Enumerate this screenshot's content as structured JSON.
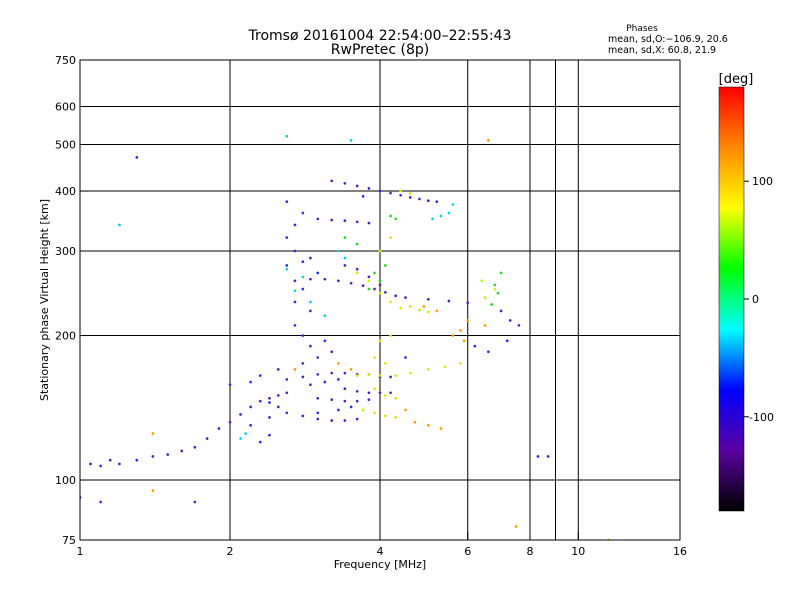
{
  "chart_data": {
    "type": "scatter",
    "title": "Tromsø 20161004 22:54:00–22:55:43",
    "subtitle": "RwPretec (8p)",
    "xlabel": "Frequency [MHz]",
    "ylabel": "Stationary phase Virtual Height [km]",
    "x_scale": "log",
    "y_scale": "log",
    "xlim": [
      1,
      16
    ],
    "ylim": [
      75,
      750
    ],
    "x_ticks": [
      1,
      2,
      4,
      6,
      8,
      10,
      16
    ],
    "x_minor_ticks": [
      9
    ],
    "y_ticks": [
      75,
      100,
      200,
      300,
      400,
      500,
      600,
      750
    ],
    "grid": true,
    "legend": {
      "title": "Phases",
      "line1": "mean, sd,O:−106.9, 20.6",
      "line2": "mean, sd,X:  60.8, 21.9"
    },
    "colorbar": {
      "label": "[deg]",
      "range": [
        -180,
        180
      ],
      "ticks": [
        100,
        0,
        -100
      ],
      "colors": [
        "#ff0000",
        "#ff8800",
        "#ffff00",
        "#00ff00",
        "#00ffff",
        "#0000ff",
        "#5a00a0",
        "#000000"
      ]
    },
    "series": [
      {
        "name": "O",
        "color": "#4a1fb8",
        "points": [
          [
            1.05,
            108
          ],
          [
            1.1,
            107
          ],
          [
            1.15,
            110
          ],
          [
            1.2,
            108
          ],
          [
            1.3,
            110
          ],
          [
            1.4,
            112
          ],
          [
            1.5,
            113
          ],
          [
            1.6,
            115
          ],
          [
            1.7,
            117
          ],
          [
            1.8,
            122
          ],
          [
            1.9,
            128
          ],
          [
            2.0,
            132
          ],
          [
            2.1,
            137
          ],
          [
            2.2,
            142
          ],
          [
            2.3,
            146
          ],
          [
            2.4,
            148
          ],
          [
            2.5,
            150
          ],
          [
            2.6,
            152
          ],
          [
            2.2,
            130
          ],
          [
            2.4,
            135
          ],
          [
            2.6,
            138
          ],
          [
            2.8,
            136
          ],
          [
            3.0,
            134
          ],
          [
            3.2,
            133
          ],
          [
            3.4,
            133
          ],
          [
            3.6,
            134
          ],
          [
            3.0,
            148
          ],
          [
            3.2,
            147
          ],
          [
            3.4,
            146
          ],
          [
            3.6,
            146
          ],
          [
            3.8,
            147
          ],
          [
            2.6,
            162
          ],
          [
            2.8,
            164
          ],
          [
            3.0,
            166
          ],
          [
            3.2,
            167
          ],
          [
            3.4,
            167
          ],
          [
            3.6,
            166
          ],
          [
            3.8,
            166
          ],
          [
            4.0,
            164
          ],
          [
            4.2,
            164
          ],
          [
            3.4,
            155
          ],
          [
            3.6,
            153
          ],
          [
            3.8,
            152
          ],
          [
            4.0,
            152
          ],
          [
            4.2,
            152
          ],
          [
            2.8,
            175
          ],
          [
            3.0,
            180
          ],
          [
            3.2,
            185
          ],
          [
            2.7,
            260
          ],
          [
            2.9,
            262
          ],
          [
            3.1,
            262
          ],
          [
            3.3,
            260
          ],
          [
            3.5,
            257
          ],
          [
            3.7,
            254
          ],
          [
            3.9,
            250
          ],
          [
            4.1,
            246
          ],
          [
            4.3,
            242
          ],
          [
            3.4,
            280
          ],
          [
            3.6,
            275
          ],
          [
            3.8,
            265
          ],
          [
            4.0,
            255
          ],
          [
            4.5,
            240
          ],
          [
            5.0,
            238
          ],
          [
            5.5,
            236
          ],
          [
            6.0,
            234
          ],
          [
            3.0,
            350
          ],
          [
            3.2,
            348
          ],
          [
            3.4,
            347
          ],
          [
            3.6,
            345
          ],
          [
            3.8,
            343
          ],
          [
            3.2,
            420
          ],
          [
            3.4,
            415
          ],
          [
            3.6,
            410
          ],
          [
            3.8,
            405
          ],
          [
            4.0,
            400
          ],
          [
            4.2,
            396
          ],
          [
            4.4,
            392
          ],
          [
            4.6,
            388
          ],
          [
            4.8,
            385
          ],
          [
            5.0,
            382
          ],
          [
            5.2,
            380
          ],
          [
            7.0,
            225
          ],
          [
            7.3,
            215
          ],
          [
            7.6,
            210
          ],
          [
            1.0,
            92
          ],
          [
            1.1,
            90
          ],
          [
            1.7,
            90
          ]
        ]
      },
      {
        "name": "O-scatter",
        "color": "#1b2ee8",
        "points": [
          [
            2.6,
            280
          ],
          [
            2.7,
            300
          ],
          [
            2.8,
            285
          ],
          [
            2.9,
            290
          ],
          [
            3.0,
            270
          ],
          [
            2.8,
            250
          ],
          [
            2.7,
            235
          ],
          [
            2.9,
            225
          ],
          [
            2.6,
            320
          ],
          [
            2.7,
            340
          ],
          [
            2.6,
            380
          ],
          [
            2.8,
            360
          ],
          [
            2.7,
            210
          ],
          [
            2.8,
            200
          ],
          [
            2.2,
            160
          ],
          [
            2.3,
            165
          ],
          [
            2.5,
            170
          ],
          [
            2.9,
            190
          ],
          [
            3.1,
            195
          ],
          [
            2.4,
            145
          ],
          [
            2.5,
            142
          ],
          [
            2.9,
            158
          ],
          [
            3.1,
            160
          ],
          [
            3.3,
            162
          ],
          [
            2.3,
            120
          ],
          [
            2.4,
            124
          ],
          [
            3.0,
            138
          ],
          [
            3.3,
            140
          ],
          [
            3.5,
            142
          ],
          [
            6.2,
            190
          ],
          [
            6.6,
            185
          ],
          [
            7.2,
            195
          ],
          [
            8.3,
            112
          ],
          [
            8.7,
            112
          ],
          [
            2.0,
            158
          ],
          [
            4.5,
            180
          ],
          [
            3.7,
            390
          ],
          [
            1.3,
            470
          ]
        ]
      },
      {
        "name": "X",
        "color": "#c8f000",
        "points": [
          [
            3.6,
            270
          ],
          [
            3.8,
            260
          ],
          [
            4.0,
            245
          ],
          [
            4.2,
            235
          ],
          [
            4.4,
            228
          ],
          [
            4.6,
            230
          ],
          [
            4.8,
            226
          ],
          [
            5.0,
            224
          ],
          [
            3.6,
            165
          ],
          [
            3.8,
            166
          ],
          [
            4.0,
            165
          ],
          [
            4.3,
            165
          ],
          [
            4.6,
            167
          ],
          [
            5.0,
            170
          ],
          [
            5.4,
            172
          ],
          [
            5.8,
            175
          ],
          [
            3.9,
            155
          ],
          [
            4.1,
            150
          ],
          [
            4.3,
            148
          ],
          [
            3.7,
            140
          ],
          [
            3.9,
            138
          ],
          [
            4.1,
            136
          ],
          [
            4.3,
            135
          ],
          [
            4.0,
            195
          ],
          [
            4.2,
            200
          ],
          [
            6.5,
            240
          ],
          [
            6.8,
            250
          ],
          [
            6.4,
            260
          ],
          [
            4.2,
            320
          ],
          [
            4.0,
            300
          ],
          [
            4.4,
            400
          ],
          [
            4.6,
            395
          ],
          [
            3.9,
            180
          ],
          [
            4.1,
            175
          ]
        ]
      },
      {
        "name": "X-orange",
        "color": "#ff9a00",
        "points": [
          [
            4.5,
            140
          ],
          [
            4.7,
            132
          ],
          [
            5.0,
            130
          ],
          [
            5.3,
            128
          ],
          [
            5.6,
            200
          ],
          [
            5.8,
            205
          ],
          [
            5.9,
            195
          ],
          [
            6.0,
            215
          ],
          [
            4.9,
            230
          ],
          [
            5.2,
            225
          ],
          [
            2.7,
            170
          ],
          [
            3.3,
            175
          ],
          [
            3.5,
            170
          ],
          [
            6.5,
            210
          ],
          [
            1.4,
            125
          ],
          [
            1.4,
            95
          ],
          [
            11.5,
            75
          ],
          [
            7.5,
            80
          ],
          [
            6.6,
            510
          ]
        ]
      },
      {
        "name": "cyan",
        "color": "#00d0e0",
        "points": [
          [
            2.6,
            275
          ],
          [
            2.8,
            265
          ],
          [
            2.7,
            248
          ],
          [
            3.4,
            290
          ],
          [
            3.3,
            300
          ],
          [
            2.1,
            122
          ],
          [
            2.15,
            125
          ],
          [
            5.1,
            350
          ],
          [
            5.3,
            355
          ],
          [
            5.5,
            360
          ],
          [
            5.6,
            375
          ],
          [
            3.5,
            510
          ],
          [
            2.6,
            520
          ],
          [
            1.2,
            340
          ],
          [
            2.9,
            235
          ],
          [
            3.1,
            220
          ]
        ]
      },
      {
        "name": "green",
        "color": "#20d820",
        "points": [
          [
            3.8,
            250
          ],
          [
            4.0,
            260
          ],
          [
            3.9,
            270
          ],
          [
            4.1,
            280
          ],
          [
            4.3,
            350
          ],
          [
            4.2,
            355
          ],
          [
            6.8,
            255
          ],
          [
            7.0,
            270
          ],
          [
            6.7,
            232
          ],
          [
            6.9,
            245
          ],
          [
            3.4,
            320
          ],
          [
            3.6,
            310
          ]
        ]
      }
    ]
  }
}
